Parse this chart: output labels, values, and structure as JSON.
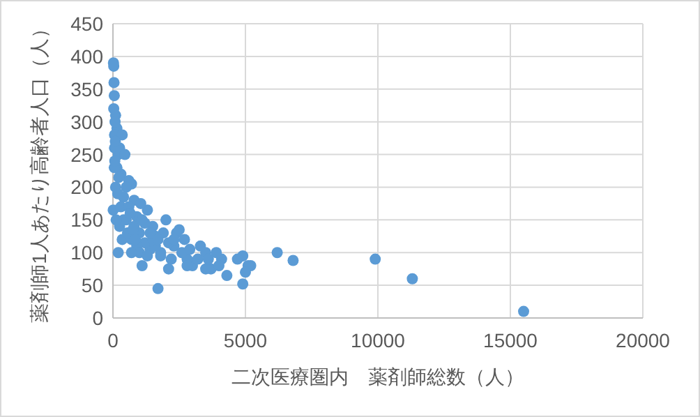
{
  "chart_data": {
    "type": "scatter",
    "xlabel": "二次医療圏内　薬剤師総数（人）",
    "ylabel": "薬剤師1人あたり高齢者人口（人）",
    "xlim": [
      0,
      20000
    ],
    "xticks": [
      0,
      5000,
      10000,
      15000,
      20000
    ],
    "ylim": [
      0,
      450
    ],
    "yticks": [
      0,
      50,
      100,
      150,
      200,
      250,
      300,
      350,
      400,
      450
    ],
    "grid": true,
    "marker": "circle",
    "series": [
      {
        "color": "#5b9bd5",
        "x": [
          15500,
          11300,
          9900,
          6800,
          6200,
          5200,
          5100,
          5000,
          4900,
          4900,
          4700,
          4300,
          4100,
          3900,
          3700,
          3500,
          3500,
          3300,
          3000,
          2800,
          2700,
          2500,
          2400,
          2300,
          2200,
          2100,
          2000,
          1800,
          1700,
          1600,
          1500,
          1400,
          1300,
          1200,
          1100,
          1000,
          900,
          800,
          700,
          600,
          500,
          400,
          300,
          200,
          150,
          100,
          50,
          30,
          20,
          40,
          80,
          60,
          10,
          250,
          200,
          350,
          500,
          700,
          900,
          1200,
          1600,
          1900,
          2100,
          2600,
          300,
          100,
          150,
          400,
          600,
          800,
          1000,
          1300,
          1500,
          60,
          120,
          250,
          450,
          350,
          50,
          700,
          2800,
          3200,
          3600,
          4000,
          1800,
          30,
          70,
          90,
          180,
          220,
          550,
          650,
          750,
          850,
          1050,
          1100,
          1400,
          1700,
          2300,
          2900
        ],
        "values": [
          10,
          60,
          90,
          88,
          100,
          80,
          80,
          70,
          95,
          52,
          90,
          65,
          90,
          100,
          75,
          75,
          100,
          110,
          80,
          90,
          120,
          135,
          130,
          110,
          90,
          75,
          150,
          100,
          45,
          125,
          140,
          105,
          165,
          115,
          80,
          130,
          155,
          180,
          205,
          210,
          200,
          185,
          220,
          250,
          290,
          310,
          340,
          385,
          390,
          360,
          300,
          260,
          165,
          140,
          100,
          120,
          150,
          120,
          110,
          145,
          110,
          130,
          115,
          100,
          170,
          200,
          230,
          150,
          170,
          140,
          100,
          95,
          120,
          280,
          150,
          260,
          250,
          280,
          230,
          100,
          80,
          90,
          90,
          80,
          95,
          320,
          240,
          270,
          190,
          215,
          130,
          160,
          135,
          120,
          175,
          150,
          130,
          120,
          120,
          105
        ]
      }
    ]
  }
}
